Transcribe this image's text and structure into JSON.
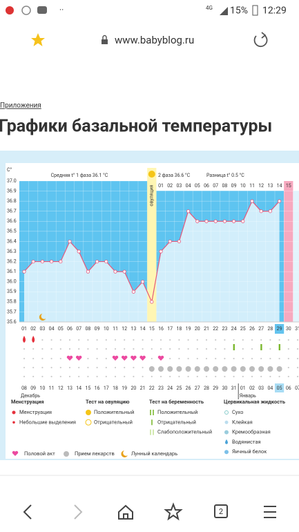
{
  "status_bar": {
    "network": "4G",
    "battery": "15%",
    "time": "12:29"
  },
  "browser": {
    "url": "www.babyblog.ru",
    "tabs": "2"
  },
  "page": {
    "breadcrumb": "Приложения",
    "title": "Графики базальной температуры"
  },
  "chart_data": {
    "type": "line",
    "axis_unit": "C°",
    "phase1_label": "Средняя t° 1 фаза 36.1 °C",
    "phase2_label": "2 фаза 36.6 °C",
    "difference_label": "Разница t° 0.5 °C",
    "ovulation_label": "овуляция",
    "categories": [
      "01",
      "02",
      "03",
      "04",
      "05",
      "06",
      "07",
      "08",
      "09",
      "10",
      "11",
      "12",
      "13",
      "14",
      "15",
      "16",
      "17",
      "18",
      "19",
      "20",
      "21",
      "22",
      "23",
      "24",
      "25",
      "26",
      "27",
      "28",
      "29",
      "30",
      "31"
    ],
    "values": [
      36.1,
      36.2,
      36.2,
      36.2,
      36.2,
      36.4,
      36.3,
      36.1,
      36.2,
      36.2,
      36.1,
      36.1,
      35.9,
      36.0,
      35.8,
      36.3,
      36.4,
      36.4,
      36.7,
      36.6,
      36.6,
      36.6,
      36.6,
      36.6,
      36.6,
      36.8,
      36.7,
      36.7,
      36.8,
      null,
      null
    ],
    "color": "#e4587c",
    "ylim": [
      35.6,
      37.0
    ],
    "yticks": [
      {
        "value": 35.6,
        "label": "35.6"
      },
      35.7,
      35.8,
      35.9,
      {
        "value": 36.0,
        "label": "36.0"
      },
      36.1,
      36.2,
      36.3,
      36.4,
      36.5,
      36.6,
      36.7,
      36.8,
      36.9,
      {
        "value": 37.0,
        "label": "37.0"
      }
    ],
    "ovulation_day": "15",
    "period_day": "30",
    "current_day": "29",
    "phase2_days": [
      "01",
      "02",
      "03",
      "04",
      "05",
      "06",
      "07",
      "08",
      "09",
      "10",
      "11",
      "12",
      "13",
      "14",
      "15"
    ],
    "calendar": [
      "08",
      "09",
      "10",
      "11",
      "12",
      "13",
      "14",
      "15",
      "16",
      "17",
      "18",
      "19",
      "20",
      "21",
      "22",
      "23",
      "24",
      "25",
      "26",
      "27",
      "28",
      "29",
      "30",
      "31",
      "01",
      "02",
      "03",
      "04",
      "05",
      "06",
      "07"
    ],
    "calendar_weekends": [
      "12",
      "13",
      "19",
      "20",
      "26",
      "27",
      "02",
      "03"
    ],
    "months": [
      "Декабрь",
      "Январь"
    ],
    "menstruation_days": [
      "01",
      "02"
    ],
    "pregnancy_test_negative_days": [
      "24",
      "27",
      "29"
    ],
    "sex_days": [
      "06",
      "07",
      "11",
      "12",
      "13",
      "14",
      "16"
    ],
    "medicine_days": [
      "15",
      "16",
      "17",
      "18",
      "19",
      "20",
      "21",
      "22",
      "23",
      "24",
      "25",
      "26",
      "27",
      "28",
      "29"
    ],
    "lunar_days": [
      "03"
    ],
    "legend": [
      {
        "title": "Менструация",
        "items": [
          "Менструация",
          "Небольшие выделения"
        ]
      },
      {
        "title": "Тест на овуляцию",
        "items": [
          "Положительный",
          "Отрицательный"
        ]
      },
      {
        "title": "Тест на беременность",
        "items": [
          "Положительный",
          "Отрицательный",
          "Слабоположительный"
        ]
      },
      {
        "title": "Цервикальная жидкость",
        "items": [
          "Сухо",
          "Клейкая",
          "Кремообразная",
          "Водянистая",
          "Яичный белок"
        ]
      }
    ],
    "legend_extra": [
      "Половой акт",
      "Прием лекарств",
      "Лунный календарь"
    ]
  }
}
